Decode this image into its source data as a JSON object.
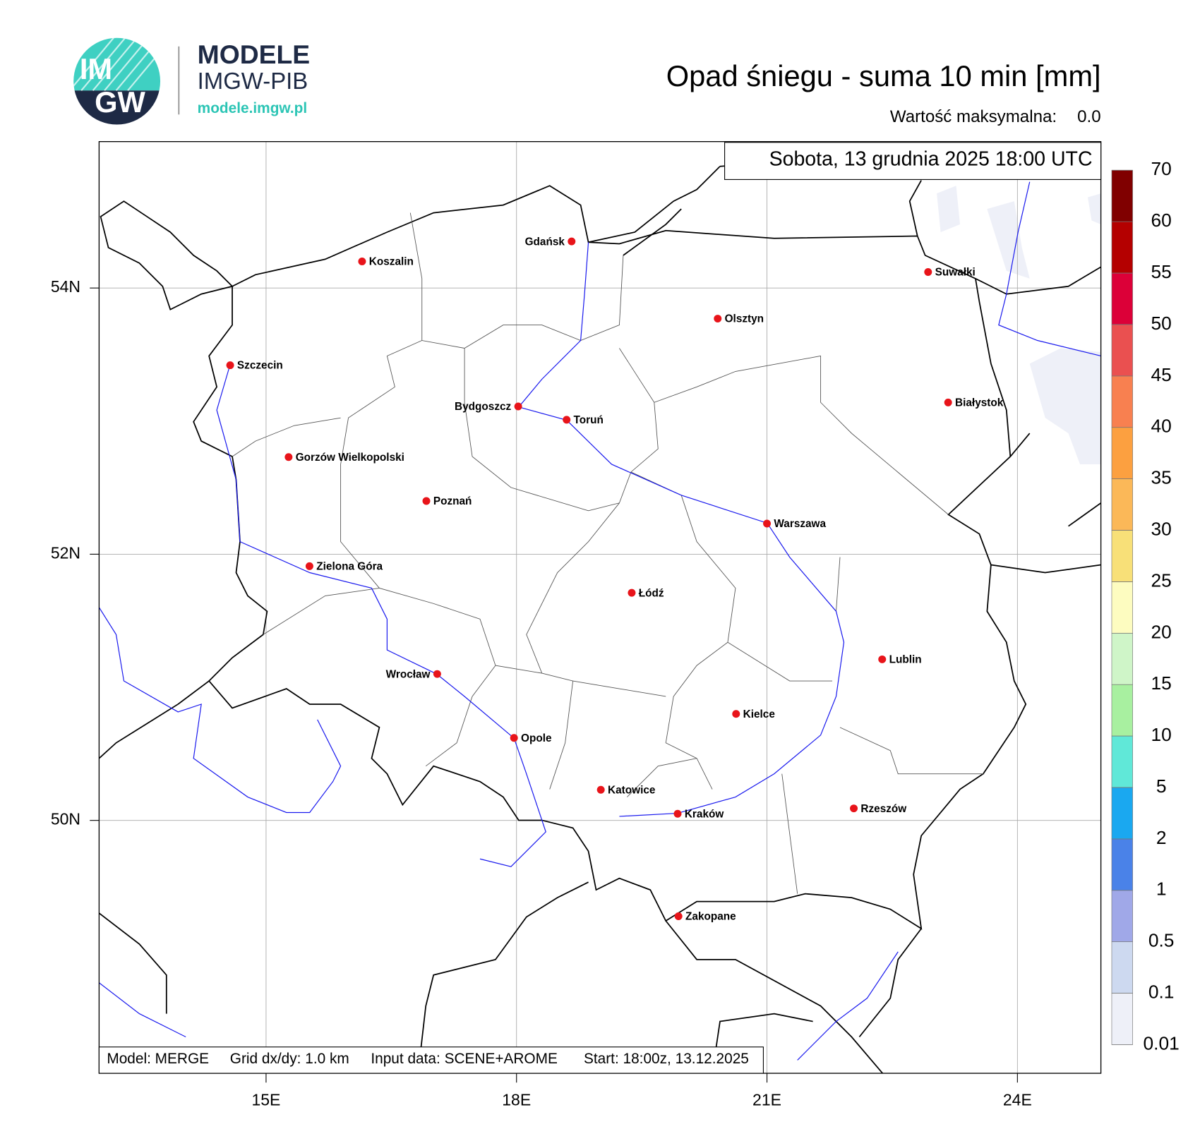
{
  "header": {
    "logo_top": "IM",
    "logo_bottom": "GW",
    "brand": "MODELE",
    "brand_sub": "IMGW-PIB",
    "url": "modele.imgw.pl",
    "title": "Opad śniegu - suma 10 min [mm]",
    "max_label": "Wartość maksymalna:",
    "max_value": "0.0"
  },
  "map": {
    "date": "Sobota, 13 grudnia 2025 18:00 UTC",
    "lon_range": [
      13,
      25
    ],
    "lat_range": [
      48.1,
      55.1
    ],
    "lon_ticks": [
      {
        "value": 15,
        "label": "15E"
      },
      {
        "value": 18,
        "label": "18E"
      },
      {
        "value": 21,
        "label": "21E"
      },
      {
        "value": 24,
        "label": "24E"
      }
    ],
    "lat_ticks": [
      {
        "value": 54,
        "label": "54N"
      },
      {
        "value": 52,
        "label": "52N"
      },
      {
        "value": 50,
        "label": "50N"
      }
    ],
    "cities": [
      {
        "name": "Koszalin",
        "lon": 16.15,
        "lat": 54.2
      },
      {
        "name": "Gdańsk",
        "lon": 18.66,
        "lat": 54.35
      },
      {
        "name": "Suwałki",
        "lon": 22.93,
        "lat": 54.12
      },
      {
        "name": "Olsztyn",
        "lon": 20.41,
        "lat": 53.77
      },
      {
        "name": "Szczecin",
        "lon": 14.57,
        "lat": 53.42
      },
      {
        "name": "Bydgoszcz",
        "lon": 18.02,
        "lat": 53.11
      },
      {
        "name": "Toruń",
        "lon": 18.6,
        "lat": 53.01
      },
      {
        "name": "Białystok",
        "lon": 23.17,
        "lat": 53.14
      },
      {
        "name": "Gorzów Wielkopolski",
        "lon": 15.27,
        "lat": 52.73
      },
      {
        "name": "Poznań",
        "lon": 16.92,
        "lat": 52.4
      },
      {
        "name": "Warszawa",
        "lon": 21.0,
        "lat": 52.23
      },
      {
        "name": "Zielona Góra",
        "lon": 15.52,
        "lat": 51.91
      },
      {
        "name": "Łódź",
        "lon": 19.38,
        "lat": 51.71
      },
      {
        "name": "Lublin",
        "lon": 22.38,
        "lat": 51.21
      },
      {
        "name": "Wrocław",
        "lon": 17.05,
        "lat": 51.1
      },
      {
        "name": "Kielce",
        "lon": 20.63,
        "lat": 50.8
      },
      {
        "name": "Opole",
        "lon": 17.97,
        "lat": 50.62
      },
      {
        "name": "Katowice",
        "lon": 19.01,
        "lat": 50.23
      },
      {
        "name": "Kraków",
        "lon": 19.93,
        "lat": 50.05
      },
      {
        "name": "Rzeszów",
        "lon": 22.04,
        "lat": 50.09
      },
      {
        "name": "Zakopane",
        "lon": 19.94,
        "lat": 49.28
      }
    ]
  },
  "colorbar": {
    "levels": [
      0.01,
      0.1,
      0.5,
      1,
      2,
      5,
      10,
      15,
      20,
      25,
      30,
      35,
      40,
      45,
      50,
      55,
      60,
      70
    ],
    "colors": [
      "#eef0f8",
      "#cdd9f0",
      "#a0a8e8",
      "#4a82e8",
      "#1aa8f0",
      "#60e8d8",
      "#a8f0a0",
      "#cff5c8",
      "#fdfcc0",
      "#f8e078",
      "#fbb858",
      "#fca040",
      "#f88050",
      "#ea5050",
      "#dc0038",
      "#b40000",
      "#800000"
    ]
  },
  "footer": {
    "model": "Model: MERGE",
    "grid": "Grid dx/dy: 1.0 km",
    "input": "Input data: SCENE+AROME",
    "start": "Start: 18:00z, 13.12.2025"
  }
}
